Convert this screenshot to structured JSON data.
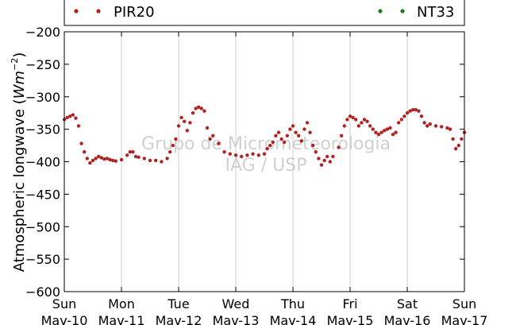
{
  "chart_data": {
    "type": "scatter",
    "ylabel": "Atmospheric longwave (Wm^-2)",
    "ylabel_parts": {
      "main": "Atmospheric longwave (",
      "unit": "Wm",
      "exp": "−2",
      "close": ")"
    },
    "ylim": [
      -600,
      -200
    ],
    "yticks": [
      -200,
      -250,
      -300,
      -350,
      -400,
      -450,
      -500,
      -550,
      -600
    ],
    "ytick_labels": [
      "−200",
      "−250",
      "−300",
      "−350",
      "−400",
      "−450",
      "−500",
      "−550",
      "−600"
    ],
    "xlim": [
      0,
      7
    ],
    "x_unit": "days since Sun Mav-10",
    "xticks": [
      {
        "pos": 0,
        "day": "Sun",
        "date": "Mav-10"
      },
      {
        "pos": 1,
        "day": "Mon",
        "date": "Mav-11"
      },
      {
        "pos": 2,
        "day": "Tue",
        "date": "Mav-12"
      },
      {
        "pos": 3,
        "day": "Wed",
        "date": "Mav-13"
      },
      {
        "pos": 4,
        "day": "Thu",
        "date": "Mav-14"
      },
      {
        "pos": 5,
        "day": "Fri",
        "date": "Mav-15"
      },
      {
        "pos": 6,
        "day": "Sat",
        "date": "Mav-16"
      },
      {
        "pos": 7,
        "day": "Sun",
        "date": "Mav-17"
      }
    ],
    "grid": "x-only",
    "legend_placement": "top",
    "series": [
      {
        "name": "PIR20",
        "color": "#b22222",
        "points": [
          [
            0.0,
            -335
          ],
          [
            0.05,
            -332
          ],
          [
            0.1,
            -330
          ],
          [
            0.15,
            -328
          ],
          [
            0.2,
            -333
          ],
          [
            0.25,
            -345
          ],
          [
            0.3,
            -372
          ],
          [
            0.35,
            -385
          ],
          [
            0.4,
            -395
          ],
          [
            0.45,
            -402
          ],
          [
            0.5,
            -398
          ],
          [
            0.55,
            -395
          ],
          [
            0.6,
            -392
          ],
          [
            0.65,
            -394
          ],
          [
            0.7,
            -396
          ],
          [
            0.75,
            -395
          ],
          [
            0.8,
            -397
          ],
          [
            0.85,
            -398
          ],
          [
            0.9,
            -399
          ],
          [
            1.0,
            -397
          ],
          [
            1.1,
            -390
          ],
          [
            1.15,
            -385
          ],
          [
            1.2,
            -385
          ],
          [
            1.25,
            -392
          ],
          [
            1.3,
            -393
          ],
          [
            1.4,
            -395
          ],
          [
            1.5,
            -398
          ],
          [
            1.6,
            -398
          ],
          [
            1.7,
            -400
          ],
          [
            1.8,
            -395
          ],
          [
            1.85,
            -385
          ],
          [
            1.9,
            -375
          ],
          [
            1.95,
            -365
          ],
          [
            2.0,
            -345
          ],
          [
            2.05,
            -332
          ],
          [
            2.1,
            -338
          ],
          [
            2.15,
            -352
          ],
          [
            2.2,
            -340
          ],
          [
            2.25,
            -325
          ],
          [
            2.3,
            -318
          ],
          [
            2.35,
            -316
          ],
          [
            2.4,
            -318
          ],
          [
            2.45,
            -322
          ],
          [
            2.5,
            -348
          ],
          [
            2.55,
            -365
          ],
          [
            2.6,
            -360
          ],
          [
            2.7,
            -372
          ],
          [
            2.8,
            -385
          ],
          [
            2.9,
            -388
          ],
          [
            3.0,
            -390
          ],
          [
            3.1,
            -392
          ],
          [
            3.2,
            -390
          ],
          [
            3.3,
            -388
          ],
          [
            3.4,
            -390
          ],
          [
            3.5,
            -388
          ],
          [
            3.55,
            -380
          ],
          [
            3.6,
            -375
          ],
          [
            3.65,
            -370
          ],
          [
            3.7,
            -360
          ],
          [
            3.75,
            -355
          ],
          [
            3.8,
            -365
          ],
          [
            3.85,
            -370
          ],
          [
            3.9,
            -360
          ],
          [
            3.95,
            -350
          ],
          [
            4.0,
            -345
          ],
          [
            4.05,
            -355
          ],
          [
            4.1,
            -360
          ],
          [
            4.15,
            -368
          ],
          [
            4.2,
            -350
          ],
          [
            4.25,
            -340
          ],
          [
            4.3,
            -355
          ],
          [
            4.35,
            -375
          ],
          [
            4.4,
            -385
          ],
          [
            4.45,
            -395
          ],
          [
            4.5,
            -405
          ],
          [
            4.55,
            -398
          ],
          [
            4.6,
            -392
          ],
          [
            4.65,
            -400
          ],
          [
            4.7,
            -392
          ],
          [
            4.8,
            -378
          ],
          [
            4.85,
            -360
          ],
          [
            4.9,
            -345
          ],
          [
            4.95,
            -335
          ],
          [
            5.0,
            -330
          ],
          [
            5.05,
            -332
          ],
          [
            5.1,
            -335
          ],
          [
            5.15,
            -345
          ],
          [
            5.2,
            -340
          ],
          [
            5.25,
            -335
          ],
          [
            5.3,
            -338
          ],
          [
            5.35,
            -345
          ],
          [
            5.4,
            -350
          ],
          [
            5.45,
            -355
          ],
          [
            5.5,
            -358
          ],
          [
            5.55,
            -355
          ],
          [
            5.6,
            -352
          ],
          [
            5.65,
            -350
          ],
          [
            5.7,
            -348
          ],
          [
            5.75,
            -358
          ],
          [
            5.8,
            -355
          ],
          [
            5.85,
            -340
          ],
          [
            5.9,
            -335
          ],
          [
            5.95,
            -330
          ],
          [
            6.0,
            -325
          ],
          [
            6.05,
            -322
          ],
          [
            6.1,
            -320
          ],
          [
            6.15,
            -320
          ],
          [
            6.2,
            -322
          ],
          [
            6.25,
            -330
          ],
          [
            6.3,
            -340
          ],
          [
            6.35,
            -345
          ],
          [
            6.4,
            -342
          ],
          [
            6.5,
            -345
          ],
          [
            6.6,
            -346
          ],
          [
            6.7,
            -348
          ],
          [
            6.75,
            -350
          ],
          [
            6.8,
            -365
          ],
          [
            6.85,
            -380
          ],
          [
            6.9,
            -375
          ],
          [
            6.95,
            -365
          ],
          [
            7.0,
            -355
          ]
        ]
      },
      {
        "name": "NT33",
        "color": "#1e7a1e",
        "points": []
      }
    ],
    "watermark": [
      "Grupo de Micrometeorologia",
      "IAG / USP"
    ]
  }
}
